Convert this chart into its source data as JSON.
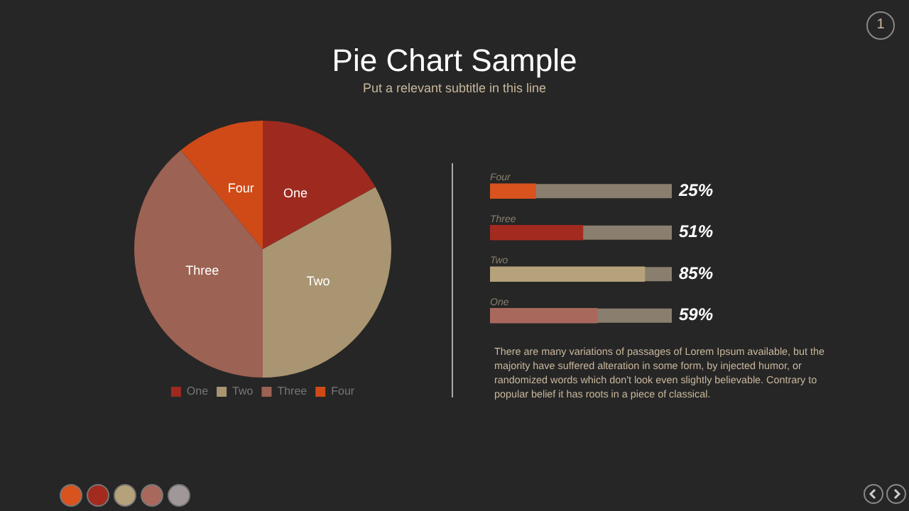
{
  "chart_data": [
    {
      "type": "pie",
      "title": "Pie Chart Sample",
      "subtitle": "Put a relevant subtitle in this line",
      "categories": [
        "One",
        "Two",
        "Three",
        "Four"
      ],
      "values": [
        17,
        33,
        39,
        11
      ],
      "colors": [
        "#9e2a1f",
        "#a99572",
        "#9c6253",
        "#d04a17"
      ],
      "legend": "bottom",
      "annotations": [
        "1"
      ]
    },
    {
      "type": "bar",
      "orientation": "horizontal",
      "categories": [
        "Four",
        "Three",
        "Two",
        "One"
      ],
      "values": [
        25,
        51,
        85,
        59
      ],
      "colors": [
        "#d9531e",
        "#a32a1f",
        "#b5a27a",
        "#a8695c"
      ],
      "value_labels": [
        "25%",
        "51%",
        "85%",
        "59%"
      ],
      "xlim": [
        0,
        100
      ],
      "tick_labels": false,
      "annotations": [
        "There are many variations of passages of Lorem Ipsum available, but the majority have suffered alteration in some form, by injected humor, or randomized words which don't look even slightly believable. Contrary to popular belief it has roots in a piece of classical."
      ]
    }
  ]
}
